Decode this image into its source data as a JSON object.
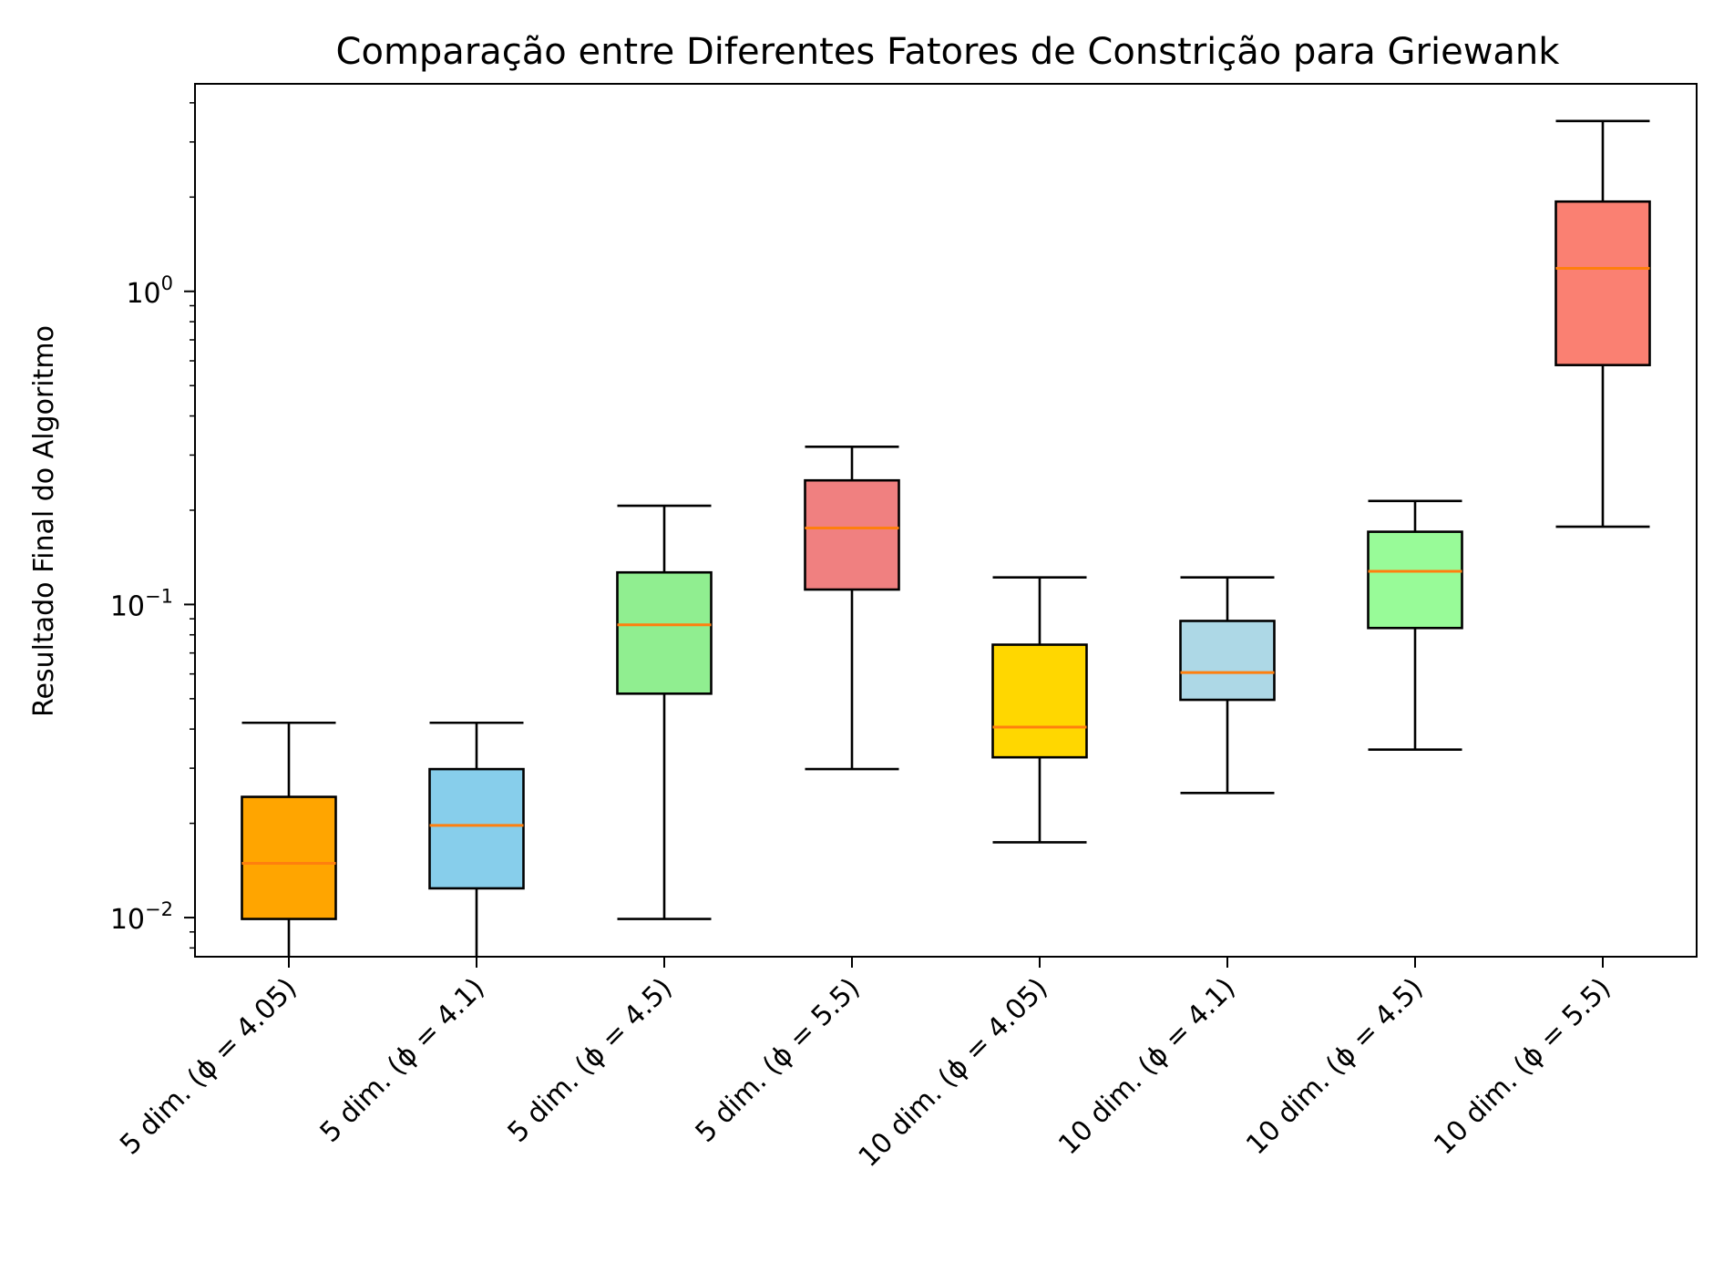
{
  "chart_data": {
    "type": "box",
    "title": "Comparação entre Diferentes Fatores de Constrição para Griewank",
    "xlabel": "",
    "ylabel": "Resultado Final do Algoritmo",
    "yscale": "log",
    "ylim": [
      0.0075,
      4.6
    ],
    "grid": false,
    "y_ticks": [
      {
        "value": 0.01,
        "base": "10",
        "exp": "−2"
      },
      {
        "value": 0.1,
        "base": "10",
        "exp": "−1"
      },
      {
        "value": 1,
        "base": "10",
        "exp": "0"
      }
    ],
    "median_color": "#ff7f0e",
    "categories": [
      "5 dim. (ϕ = 4.05)",
      "5 dim. (ϕ = 4.1)",
      "5 dim. (ϕ = 4.5)",
      "5 dim. (ϕ = 5.5)",
      "10 dim. (ϕ = 4.05)",
      "10 dim. (ϕ = 4.1)",
      "10 dim. (ϕ = 4.5)",
      "10 dim. (ϕ = 5.5)"
    ],
    "boxes": [
      {
        "whisker_low": 0.0068,
        "q1": 0.0099,
        "median": 0.0149,
        "q3": 0.0243,
        "whisker_high": 0.0419,
        "color": "#ffa500"
      },
      {
        "whisker_low": 0.0068,
        "q1": 0.0124,
        "median": 0.0197,
        "q3": 0.0298,
        "whisker_high": 0.0419,
        "color": "#87ceeb"
      },
      {
        "whisker_low": 0.0099,
        "q1": 0.0519,
        "median": 0.0861,
        "q3": 0.1266,
        "whisker_high": 0.2067,
        "color": "#90ee90"
      },
      {
        "whisker_low": 0.0298,
        "q1": 0.1116,
        "median": 0.1755,
        "q3": 0.2491,
        "whisker_high": 0.3189,
        "color": "#f08080"
      },
      {
        "whisker_low": 0.0174,
        "q1": 0.0325,
        "median": 0.0406,
        "q3": 0.0744,
        "whisker_high": 0.122,
        "color": "#ffd700"
      },
      {
        "whisker_low": 0.025,
        "q1": 0.0496,
        "median": 0.0606,
        "q3": 0.0886,
        "whisker_high": 0.122,
        "color": "#add8e6"
      },
      {
        "whisker_low": 0.0344,
        "q1": 0.0841,
        "median": 0.1276,
        "q3": 0.1707,
        "whisker_high": 0.2141,
        "color": "#98fb98"
      },
      {
        "whisker_low": 0.1772,
        "q1": 0.5815,
        "median": 1.1848,
        "q3": 1.9353,
        "whisker_high": 3.5005,
        "color": "#fa8072"
      }
    ]
  }
}
